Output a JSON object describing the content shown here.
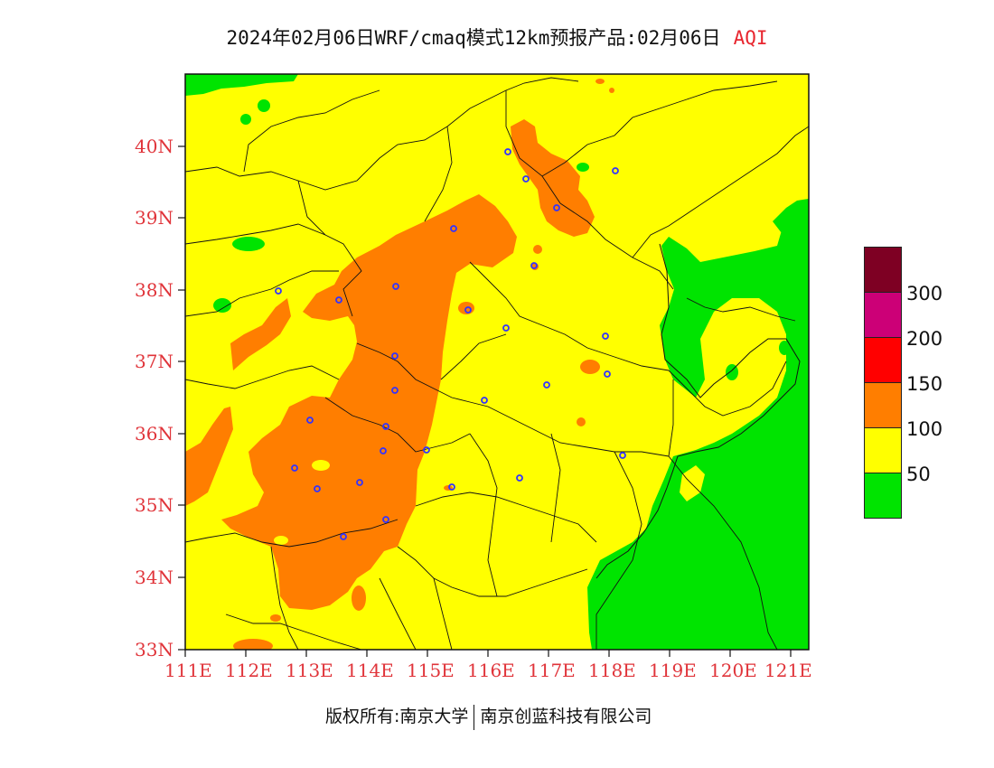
{
  "title": {
    "text": "2024年02月06日WRF/cmaq模式12km预报产品:02月06日",
    "tag": "AQI"
  },
  "map": {
    "lat_ticks": [
      "40N",
      "39N",
      "38N",
      "37N",
      "36N",
      "35N",
      "34N",
      "33N"
    ],
    "lon_ticks": [
      "111E",
      "112E",
      "113E",
      "114E",
      "115E",
      "116E",
      "117E",
      "118E",
      "119E",
      "120E",
      "121E"
    ],
    "extent": {
      "lon_min": 111,
      "lon_max": 121.3,
      "lat_min": 33,
      "lat_max": 41
    },
    "colors": {
      "green": "#00e400",
      "yellow": "#ffff00",
      "orange": "#ff7e00",
      "red": "#ff0000",
      "purple": "#cc0077",
      "maroon": "#7e0023",
      "station": "#3333ff"
    }
  },
  "legend": {
    "levels": [
      {
        "color": "#7e0023",
        "label": "300"
      },
      {
        "color": "#cc0077",
        "label": "200"
      },
      {
        "color": "#ff0000",
        "label": "150"
      },
      {
        "color": "#ff7e00",
        "label": "100"
      },
      {
        "color": "#ffff00",
        "label": "50"
      },
      {
        "color": "#00e400",
        "label": ""
      }
    ]
  },
  "footer": {
    "left": "版权所有:南京大学",
    "right": "南京创蓝科技有限公司"
  }
}
